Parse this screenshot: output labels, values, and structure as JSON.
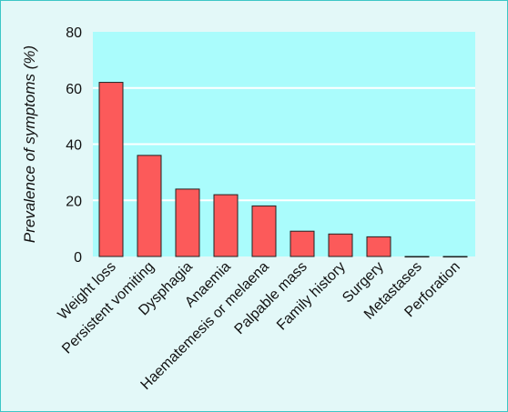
{
  "chart_data": {
    "type": "bar",
    "title": "",
    "xlabel": "",
    "ylabel": "Prevalence of symptoms (%)",
    "ylim": [
      0,
      80
    ],
    "yticks": [
      0,
      20,
      40,
      60,
      80
    ],
    "grid": true,
    "categories": [
      "Weight loss",
      "Persistent vomiting",
      "Dysphagia",
      "Anaemia",
      "Haematemesis or melaena",
      "Palpable mass",
      "Family history",
      "Surgery",
      "Metastases",
      "Perforation"
    ],
    "values": [
      62,
      36,
      24,
      22,
      18,
      9,
      8,
      7,
      0,
      0
    ],
    "colors": {
      "plot_background": "#aafcfc",
      "bar_fill": "#fc5a5a",
      "bar_stroke": "#222222",
      "grid": "#ffffff",
      "frame": "#3cc6c6",
      "page_background": "#e3f8f8"
    }
  }
}
